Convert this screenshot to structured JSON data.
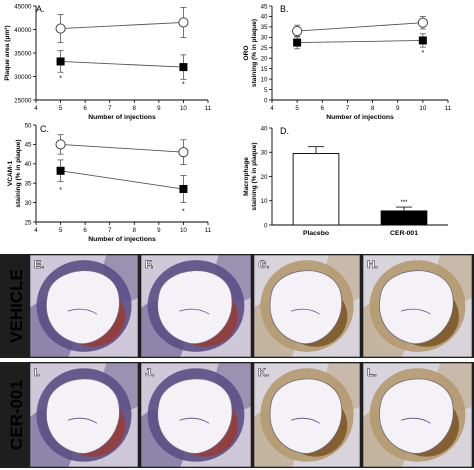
{
  "colors": {
    "placebo_fill": "#ffffff",
    "cer_fill": "#000000",
    "tissue_purple": "#5b4f86",
    "tissue_red": "#9b3b33",
    "tissue_brown": "#7a5422",
    "stain_light": "#ddd6cc",
    "row_separator": "#1e1e1e"
  },
  "rows": {
    "vehicle_label": "VEHICLE",
    "cer_label": "CER-001"
  },
  "chart_data": [
    {
      "id": "A",
      "panel_label": "A.",
      "type": "line",
      "ylabel": "Plaque area (μm²)",
      "xlabel": "Number of injections",
      "xlim": [
        4,
        11
      ],
      "ylim": [
        25000,
        45000
      ],
      "xticks": [
        4,
        5,
        6,
        7,
        8,
        9,
        10,
        11
      ],
      "yticks": [
        25000,
        30000,
        35000,
        40000,
        45000
      ],
      "ytick_labels": [
        "25000",
        "30000",
        "35000",
        "40000",
        "45000"
      ],
      "series": [
        {
          "marker": "open-circle",
          "x": [
            5,
            10
          ],
          "values": [
            40200,
            41500
          ],
          "err": [
            3000,
            3200
          ]
        },
        {
          "marker": "filled-square",
          "x": [
            5,
            10
          ],
          "values": [
            33200,
            32000
          ],
          "err": [
            2300,
            2600
          ]
        }
      ],
      "annotations": [
        {
          "text": "*",
          "x": 5,
          "y": 29800
        },
        {
          "text": "*",
          "x": 10,
          "y": 28500
        }
      ]
    },
    {
      "id": "B",
      "panel_label": "B.",
      "type": "line",
      "ylabel": "ORO staining (% in plaque)",
      "xlabel": "Number of injections",
      "xlim": [
        4,
        11
      ],
      "ylim": [
        0,
        45
      ],
      "xticks": [
        4,
        5,
        6,
        7,
        8,
        9,
        10,
        11
      ],
      "yticks": [
        0,
        5,
        10,
        15,
        20,
        25,
        30,
        35,
        40,
        45
      ],
      "ytick_labels": [
        "0",
        "5",
        "10",
        "15",
        "20",
        "25",
        "30",
        "35",
        "40",
        "45"
      ],
      "series": [
        {
          "marker": "open-circle",
          "x": [
            5,
            10
          ],
          "values": [
            33,
            37
          ],
          "err": [
            2.8,
            3
          ]
        },
        {
          "marker": "filled-square",
          "x": [
            5,
            10
          ],
          "values": [
            27.5,
            28.5
          ],
          "err": [
            3,
            3.2
          ]
        }
      ],
      "annotations": [
        {
          "text": "*",
          "x": 10,
          "y": 23
        }
      ]
    },
    {
      "id": "C",
      "panel_label": "C.",
      "type": "line",
      "ylabel": "VCAM-1 staining (% in plaque)",
      "xlabel": "Number of injections",
      "xlim": [
        4,
        11
      ],
      "ylim": [
        25,
        50
      ],
      "xticks": [
        4,
        5,
        6,
        7,
        8,
        9,
        10,
        11
      ],
      "yticks": [
        25,
        30,
        35,
        40,
        45,
        50
      ],
      "ytick_labels": [
        "25",
        "30",
        "35",
        "40",
        "45",
        "50"
      ],
      "series": [
        {
          "marker": "open-circle",
          "x": [
            5,
            10
          ],
          "values": [
            45,
            43
          ],
          "err": [
            2.5,
            3.2
          ]
        },
        {
          "marker": "filled-square",
          "x": [
            5,
            10
          ],
          "values": [
            38.2,
            33.5
          ],
          "err": [
            2.8,
            3.5
          ]
        }
      ],
      "annotations": [
        {
          "text": "*",
          "x": 5,
          "y": 33.5
        },
        {
          "text": "*",
          "x": 10,
          "y": 28
        }
      ]
    },
    {
      "id": "D",
      "panel_label": "D.",
      "type": "bar",
      "ylabel": "Macrophage staining (% in plaque)",
      "categories": [
        "Placebo",
        "CER-001"
      ],
      "ylim": [
        0,
        40
      ],
      "yticks": [
        0,
        10,
        20,
        30,
        40
      ],
      "ytick_labels": [
        "0",
        "10",
        "20",
        "30",
        "40"
      ],
      "series": [
        {
          "fills": [
            "#ffffff",
            "#000000"
          ],
          "values": [
            29.5,
            5.8
          ],
          "err": [
            2.8,
            1.6
          ]
        }
      ],
      "annotations": [
        {
          "text": "***",
          "category": "CER-001",
          "y": 9.5
        }
      ]
    }
  ],
  "micrographs": [
    {
      "label": "E.",
      "row": "vehicle",
      "stain": "purple"
    },
    {
      "label": "F.",
      "row": "vehicle",
      "stain": "purple"
    },
    {
      "label": "G.",
      "row": "vehicle",
      "stain": "brown"
    },
    {
      "label": "H.",
      "row": "vehicle",
      "stain": "brown"
    },
    {
      "label": "I.",
      "row": "cer",
      "stain": "purple"
    },
    {
      "label": "J.",
      "row": "cer",
      "stain": "purple"
    },
    {
      "label": "K.",
      "row": "cer",
      "stain": "brown"
    },
    {
      "label": "L.",
      "row": "cer",
      "stain": "brown"
    }
  ]
}
